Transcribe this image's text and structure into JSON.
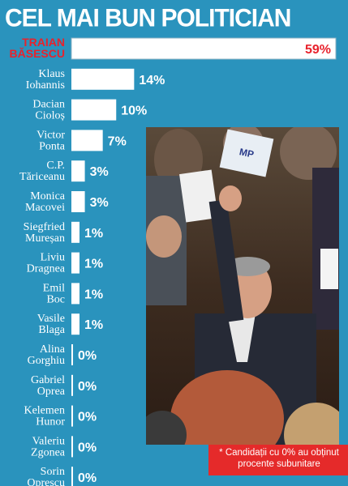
{
  "title": "CEL MAI BUN POLITICIAN",
  "note": "* Candidații cu 0% au obținut procente subunitare",
  "colors": {
    "background": "#2a93bd",
    "bar": "#ffffff",
    "highlight": "#e8222c",
    "note": "#e52a2a",
    "text": "#ffffff"
  },
  "chart_data": {
    "type": "bar",
    "orientation": "horizontal",
    "title": "CEL MAI BUN POLITICIAN",
    "categories": [
      [
        "Traian",
        "Băsescu"
      ],
      [
        "Klaus",
        "Iohannis"
      ],
      [
        "Dacian",
        "Cioloș"
      ],
      [
        "Victor",
        "Ponta"
      ],
      [
        "C.P.",
        "Tăriceanu"
      ],
      [
        "Monica",
        "Macovei"
      ],
      [
        "Siegfried",
        "Mureșan"
      ],
      [
        "Liviu",
        "Dragnea"
      ],
      [
        "Emil",
        "Boc"
      ],
      [
        "Vasile",
        "Blaga"
      ],
      [
        "Alina",
        "Gorghiu"
      ],
      [
        "Gabriel",
        "Oprea"
      ],
      [
        "Kelemen",
        "Hunor"
      ],
      [
        "Valeriu",
        "Zgonea"
      ],
      [
        "Sorin",
        "Oprescu"
      ]
    ],
    "values": [
      59,
      14,
      10,
      7,
      3,
      3,
      1,
      1,
      1,
      1,
      0,
      0,
      0,
      0,
      0
    ],
    "value_labels": [
      "59%",
      "14%",
      "10%",
      "7%",
      "3%",
      "3%",
      "1%",
      "1%",
      "1%",
      "1%",
      "0%",
      "0%",
      "0%",
      "0%",
      "0%"
    ],
    "highlight_index": 0,
    "xlim": [
      0,
      59
    ],
    "grid": false,
    "legend": "none",
    "footnote": "* Candidații cu 0% au obținut procente subunitare"
  }
}
